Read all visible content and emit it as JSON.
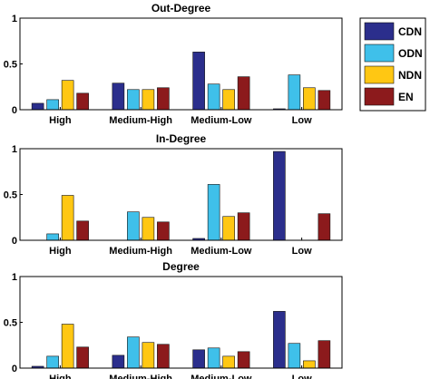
{
  "chart_data": [
    {
      "type": "bar",
      "title": "Out-Degree",
      "categories": [
        "High",
        "Medium-High",
        "Medium-Low",
        "Low"
      ],
      "ylim": [
        0,
        1
      ],
      "yticks": [
        "0",
        "0.5",
        "1"
      ],
      "series": [
        {
          "name": "CDN",
          "values": [
            0.07,
            0.29,
            0.63,
            0.01
          ]
        },
        {
          "name": "ODN",
          "values": [
            0.11,
            0.22,
            0.28,
            0.38
          ]
        },
        {
          "name": "NDN",
          "values": [
            0.32,
            0.22,
            0.22,
            0.24
          ]
        },
        {
          "name": "EN",
          "values": [
            0.18,
            0.24,
            0.36,
            0.21
          ]
        }
      ]
    },
    {
      "type": "bar",
      "title": "In-Degree",
      "categories": [
        "High",
        "Medium-High",
        "Medium-Low",
        "Low"
      ],
      "ylim": [
        0,
        1
      ],
      "yticks": [
        "0",
        "0.5",
        "1"
      ],
      "series": [
        {
          "name": "CDN",
          "values": [
            0.0,
            0.0,
            0.02,
            0.97
          ]
        },
        {
          "name": "ODN",
          "values": [
            0.07,
            0.31,
            0.61,
            0.0
          ]
        },
        {
          "name": "NDN",
          "values": [
            0.49,
            0.25,
            0.26,
            0.0
          ]
        },
        {
          "name": "EN",
          "values": [
            0.21,
            0.2,
            0.3,
            0.29
          ]
        }
      ]
    },
    {
      "type": "bar",
      "title": "Degree",
      "categories": [
        "High",
        "Medium-High",
        "Medium-Low",
        "Low"
      ],
      "ylim": [
        0,
        1
      ],
      "yticks": [
        "0",
        "0.5",
        "1"
      ],
      "series": [
        {
          "name": "CDN",
          "values": [
            0.02,
            0.14,
            0.2,
            0.62
          ]
        },
        {
          "name": "ODN",
          "values": [
            0.13,
            0.34,
            0.22,
            0.27
          ]
        },
        {
          "name": "NDN",
          "values": [
            0.48,
            0.28,
            0.13,
            0.08
          ]
        },
        {
          "name": "EN",
          "values": [
            0.23,
            0.26,
            0.18,
            0.3
          ]
        }
      ]
    }
  ],
  "legend": {
    "placement": "top-right",
    "items": [
      {
        "name": "CDN",
        "color": "#2b2e8c"
      },
      {
        "name": "ODN",
        "color": "#3fc0ea"
      },
      {
        "name": "NDN",
        "color": "#ffc713"
      },
      {
        "name": "EN",
        "color": "#8c1a1c"
      }
    ]
  }
}
